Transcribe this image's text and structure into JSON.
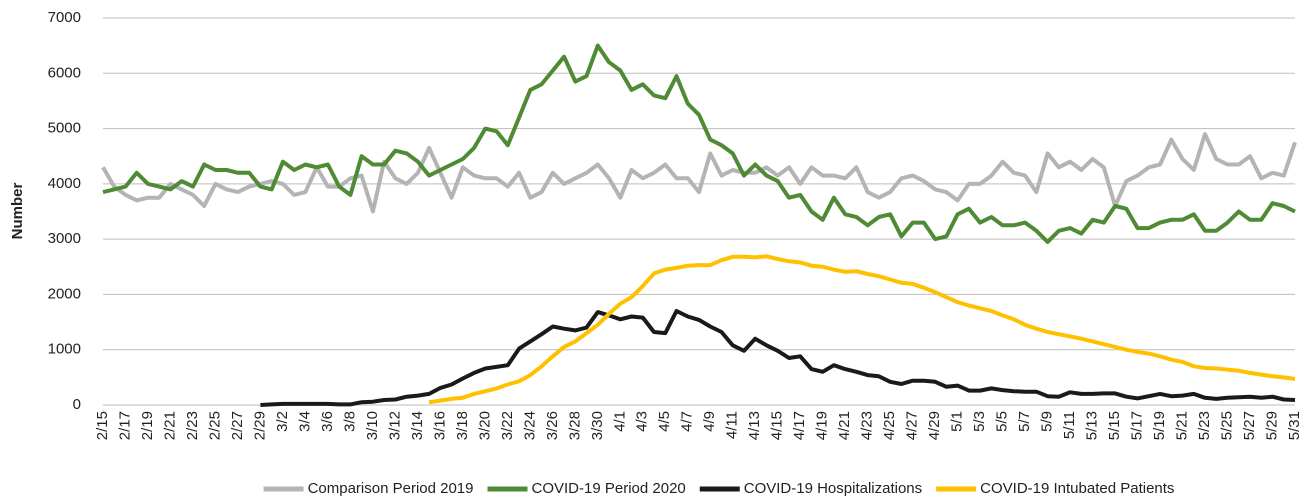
{
  "chart_data": {
    "type": "line",
    "y_label": "Number",
    "categories": [
      "2/15",
      null,
      "2/17",
      null,
      "2/19",
      null,
      "2/21",
      null,
      "2/23",
      null,
      "2/25",
      null,
      "2/27",
      null,
      "2/29",
      null,
      "3/2",
      null,
      "3/4",
      null,
      "3/6",
      null,
      "3/8",
      null,
      "3/10",
      null,
      "3/12",
      null,
      "3/14",
      null,
      "3/16",
      null,
      "3/18",
      null,
      "3/20",
      null,
      "3/22",
      null,
      "3/24",
      null,
      "3/26",
      null,
      "3/28",
      null,
      "3/30",
      null,
      "4/1",
      null,
      "4/3",
      null,
      "4/5",
      null,
      "4/7",
      null,
      "4/9",
      null,
      "4/11",
      null,
      "4/13",
      null,
      "4/15",
      null,
      "4/17",
      null,
      "4/19",
      null,
      "4/21",
      null,
      "4/23",
      null,
      "4/25",
      null,
      "4/27",
      null,
      "4/29",
      null,
      "5/1",
      null,
      "5/3",
      null,
      "5/5",
      null,
      "5/7",
      null,
      "5/9",
      null,
      "5/11",
      null,
      "5/13",
      null,
      "5/15",
      null,
      "5/17",
      null,
      "5/19",
      null,
      "5/21",
      null,
      "5/23",
      null,
      "5/25",
      null,
      "5/27",
      null,
      "5/29",
      null,
      "5/31"
    ],
    "series": [
      {
        "name": "Comparison Period 2019",
        "color": "#b4b4b4",
        "values": [
          4300,
          3950,
          3800,
          3700,
          3750,
          3750,
          4000,
          3900,
          3800,
          3600,
          4000,
          3900,
          3850,
          3950,
          4000,
          4050,
          4000,
          3800,
          3850,
          4300,
          3950,
          3950,
          4100,
          4150,
          3500,
          4400,
          4100,
          4000,
          4200,
          4650,
          4200,
          3750,
          4300,
          4150,
          4100,
          4100,
          3950,
          4200,
          3750,
          3850,
          4200,
          4000,
          4100,
          4200,
          4350,
          4100,
          3750,
          4250,
          4100,
          4200,
          4350,
          4100,
          4100,
          3850,
          4550,
          4150,
          4250,
          4200,
          4200,
          4300,
          4150,
          4300,
          4000,
          4300,
          4150,
          4150,
          4100,
          4300,
          3850,
          3750,
          3850,
          4100,
          4150,
          4050,
          3900,
          3850,
          3700,
          4000,
          4000,
          4150,
          4400,
          4200,
          4150,
          3850,
          4550,
          4300,
          4400,
          4250,
          4450,
          4300,
          3600,
          4050,
          4150,
          4300,
          4350,
          4800,
          4450,
          4250,
          4900,
          4450,
          4350,
          4350,
          4500,
          4100,
          4200,
          4150,
          4750
        ]
      },
      {
        "name": "COVID-19 Period 2020",
        "color": "#4f8a35",
        "values": [
          3850,
          3900,
          3950,
          4200,
          4000,
          3950,
          3900,
          4050,
          3950,
          4350,
          4250,
          4250,
          4200,
          4200,
          3950,
          3900,
          4400,
          4250,
          4350,
          4300,
          4350,
          3950,
          3800,
          4500,
          4350,
          4350,
          4600,
          4550,
          4400,
          4150,
          4250,
          4350,
          4450,
          4650,
          5000,
          4950,
          4700,
          5200,
          5700,
          5800,
          6050,
          6300,
          5850,
          5950,
          6500,
          6200,
          6050,
          5700,
          5800,
          5600,
          5550,
          5950,
          5450,
          5250,
          4800,
          4700,
          4550,
          4150,
          4350,
          4150,
          4050,
          3750,
          3800,
          3500,
          3350,
          3750,
          3450,
          3400,
          3250,
          3400,
          3450,
          3050,
          3300,
          3300,
          3000,
          3050,
          3450,
          3550,
          3300,
          3400,
          3250,
          3250,
          3300,
          3150,
          2950,
          3150,
          3200,
          3100,
          3350,
          3300,
          3600,
          3550,
          3200,
          3200,
          3300,
          3350,
          3350,
          3450,
          3150,
          3150,
          3300,
          3500,
          3350,
          3350,
          3650,
          3600,
          3500
        ]
      },
      {
        "name": "COVID-19 Hospitalizations",
        "color": "#1a1a1a",
        "values": [
          null,
          null,
          null,
          null,
          null,
          null,
          null,
          null,
          null,
          null,
          null,
          null,
          null,
          null,
          0,
          10,
          20,
          20,
          20,
          20,
          20,
          10,
          10,
          50,
          60,
          90,
          100,
          150,
          170,
          200,
          310,
          370,
          480,
          580,
          660,
          690,
          720,
          1020,
          1150,
          1280,
          1420,
          1380,
          1350,
          1400,
          1680,
          1620,
          1550,
          1600,
          1580,
          1320,
          1300,
          1700,
          1600,
          1540,
          1420,
          1320,
          1080,
          980,
          1200,
          1080,
          980,
          850,
          880,
          650,
          600,
          720,
          650,
          600,
          540,
          520,
          420,
          380,
          440,
          440,
          420,
          330,
          350,
          260,
          260,
          300,
          270,
          250,
          240,
          240,
          160,
          150,
          230,
          200,
          200,
          210,
          210,
          150,
          120,
          160,
          200,
          160,
          170,
          200,
          130,
          110,
          130,
          140,
          150,
          130,
          150,
          100,
          90
        ]
      },
      {
        "name": "COVID-19 Intubated Patients",
        "color": "#ffc000",
        "values": [
          null,
          null,
          null,
          null,
          null,
          null,
          null,
          null,
          null,
          null,
          null,
          null,
          null,
          null,
          null,
          null,
          null,
          null,
          null,
          null,
          null,
          null,
          null,
          null,
          null,
          null,
          null,
          null,
          null,
          50,
          80,
          110,
          130,
          200,
          250,
          300,
          370,
          430,
          540,
          700,
          880,
          1050,
          1150,
          1300,
          1450,
          1650,
          1830,
          1950,
          2150,
          2380,
          2450,
          2480,
          2520,
          2530,
          2530,
          2620,
          2680,
          2680,
          2670,
          2690,
          2640,
          2600,
          2580,
          2520,
          2500,
          2450,
          2410,
          2420,
          2370,
          2330,
          2270,
          2210,
          2190,
          2120,
          2040,
          1950,
          1860,
          1800,
          1750,
          1700,
          1620,
          1550,
          1450,
          1380,
          1320,
          1280,
          1240,
          1200,
          1150,
          1100,
          1050,
          1000,
          960,
          930,
          880,
          820,
          780,
          700,
          670,
          660,
          640,
          620,
          580,
          550,
          520,
          500,
          470
        ]
      }
    ],
    "ylim": [
      0,
      7000
    ],
    "yticks": [
      0,
      1000,
      2000,
      3000,
      4000,
      5000,
      6000,
      7000
    ],
    "grid": true,
    "legend": "bottom"
  }
}
